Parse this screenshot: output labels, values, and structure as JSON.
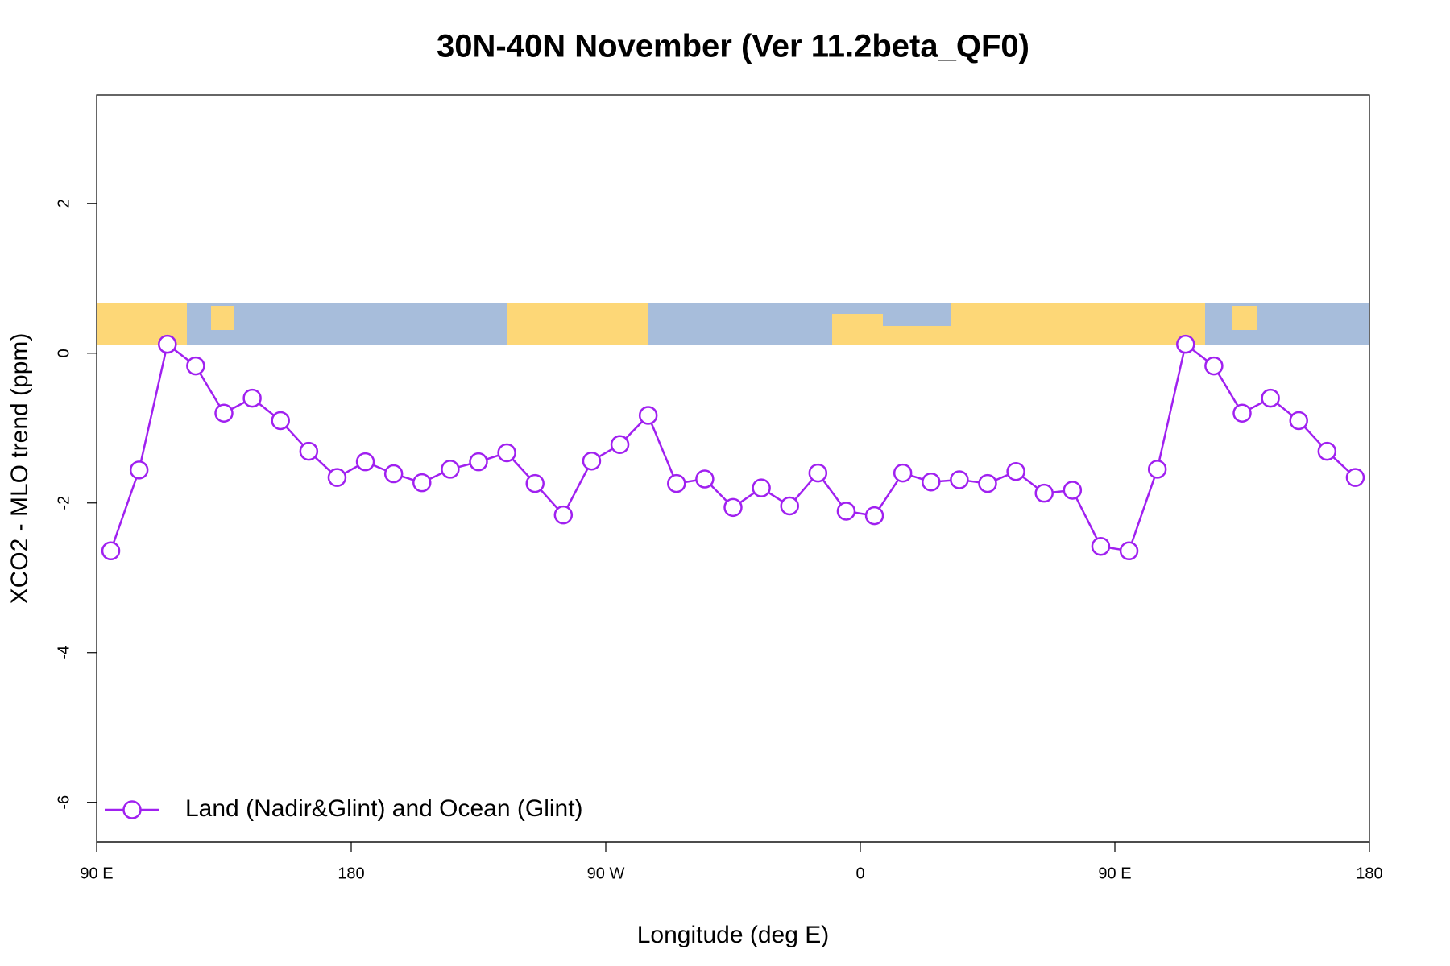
{
  "chart_data": {
    "type": "line",
    "title": "30N-40N November (Ver 11.2beta_QF0)",
    "xlabel": "Longitude (deg E)",
    "ylabel": "XCO2 - MLO trend (ppm)",
    "x": [
      95,
      105,
      115,
      125,
      135,
      145,
      155,
      165,
      175,
      185,
      195,
      205,
      215,
      225,
      235,
      245,
      255,
      265,
      275,
      285,
      295,
      305,
      315,
      325,
      335,
      345,
      355,
      365,
      375,
      385,
      395,
      405,
      415,
      425,
      435,
      445,
      455,
      465,
      475,
      485,
      495,
      505,
      515,
      525,
      535
    ],
    "series": [
      {
        "name": "Land (Nadir&Glint) and Ocean (Glint)",
        "color": "#a020f0",
        "values": [
          -2.64,
          -1.56,
          0.12,
          -0.17,
          -0.8,
          -0.6,
          -0.9,
          -1.31,
          -1.66,
          -1.45,
          -1.61,
          -1.73,
          -1.55,
          -1.45,
          -1.33,
          -1.74,
          -2.16,
          -1.44,
          -1.22,
          -0.83,
          -1.74,
          -1.68,
          -2.06,
          -1.8,
          -2.04,
          -1.6,
          -2.11,
          -2.17,
          -1.6,
          -1.72,
          -1.69,
          -1.74,
          -1.58,
          -1.87,
          -1.83,
          -2.58,
          -2.64,
          -1.55,
          0.12,
          -0.17,
          -0.8,
          -0.6,
          -0.9,
          -1.31,
          -1.66
        ]
      }
    ],
    "xlim": [
      90,
      540
    ],
    "xticks": [
      {
        "value": 90,
        "label": "90 E"
      },
      180,
      {
        "value": 270,
        "label": "90 W"
      },
      {
        "value": 360,
        "label": "0"
      },
      {
        "value": 450,
        "label": "90 E"
      },
      {
        "value": 540,
        "label": "180"
      }
    ],
    "ylim": [
      -6.53,
      3.45
    ],
    "yticks": [
      -6,
      -4,
      -2,
      0,
      2
    ],
    "legend": "bottom left",
    "grid": false
  }
}
